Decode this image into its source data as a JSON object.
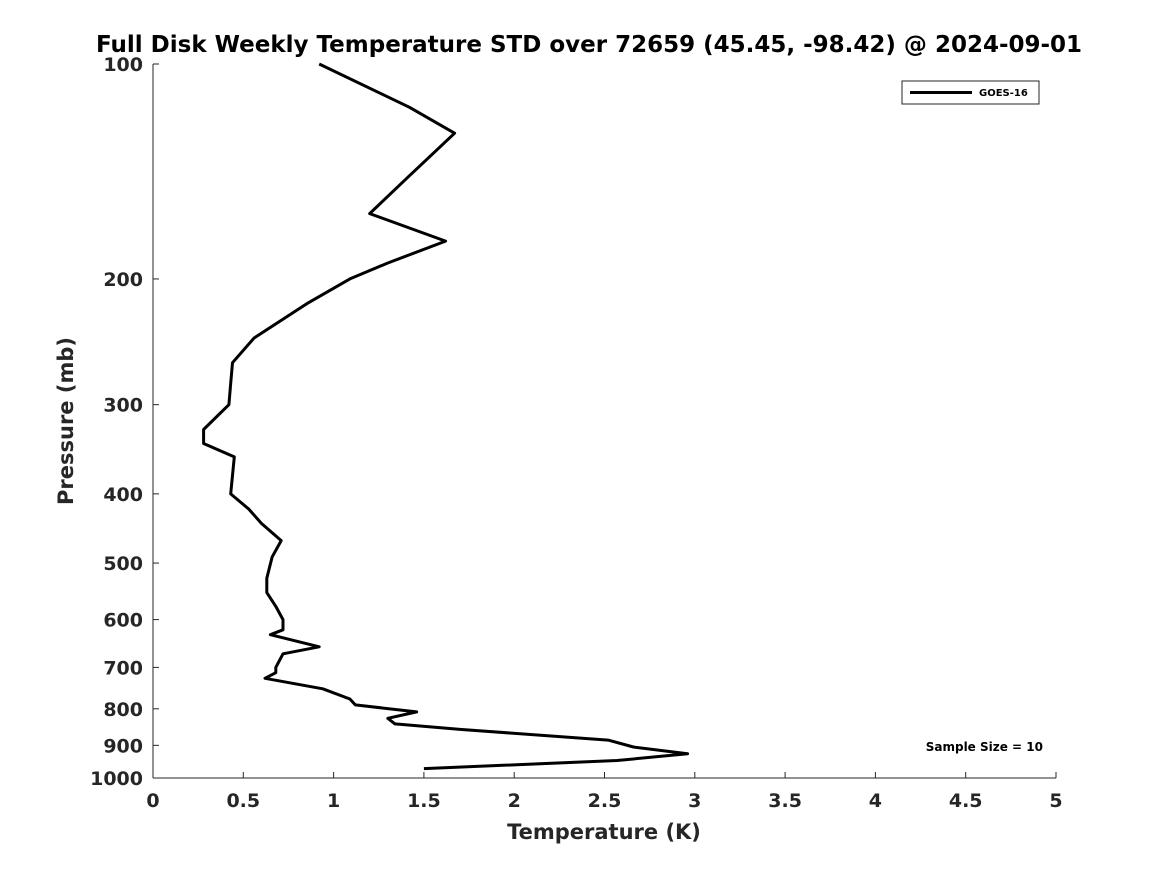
{
  "chart_data": {
    "type": "line",
    "title": "Full Disk Weekly Temperature STD over 72659 (45.45, -98.42) @ 2024-09-01",
    "xlabel": "Temperature (K)",
    "ylabel": "Pressure (mb)",
    "xlim": [
      0,
      5
    ],
    "ylim": [
      100,
      1000
    ],
    "y_scale": "log",
    "y_reversed": true,
    "x_ticks": [
      0,
      0.5,
      1,
      1.5,
      2,
      2.5,
      3,
      3.5,
      4,
      4.5,
      5
    ],
    "x_tick_labels": [
      "0",
      "0.5",
      "1",
      "1.5",
      "2",
      "2.5",
      "3",
      "3.5",
      "4",
      "4.5",
      "5"
    ],
    "y_ticks": [
      100,
      200,
      300,
      400,
      500,
      600,
      700,
      800,
      900,
      1000
    ],
    "y_tick_labels": [
      "100",
      "200",
      "300",
      "400",
      "500",
      "600",
      "700",
      "800",
      "900",
      "1000"
    ],
    "grid": false,
    "legend_position": "top-right",
    "series": [
      {
        "name": "GOES-16",
        "color": "#000000",
        "points": [
          [
            0.92,
            100
          ],
          [
            1.42,
            115
          ],
          [
            1.67,
            125
          ],
          [
            1.4,
            145
          ],
          [
            1.2,
            162
          ],
          [
            1.62,
            177
          ],
          [
            1.3,
            190
          ],
          [
            1.09,
            200
          ],
          [
            0.86,
            216
          ],
          [
            0.56,
            242
          ],
          [
            0.44,
            262
          ],
          [
            0.43,
            280
          ],
          [
            0.42,
            300
          ],
          [
            0.28,
            325
          ],
          [
            0.28,
            340
          ],
          [
            0.45,
            355
          ],
          [
            0.43,
            400
          ],
          [
            0.53,
            420
          ],
          [
            0.6,
            440
          ],
          [
            0.71,
            465
          ],
          [
            0.66,
            490
          ],
          [
            0.63,
            525
          ],
          [
            0.63,
            550
          ],
          [
            0.68,
            575
          ],
          [
            0.72,
            600
          ],
          [
            0.72,
            620
          ],
          [
            0.65,
            630
          ],
          [
            0.92,
            655
          ],
          [
            0.72,
            670
          ],
          [
            0.68,
            700
          ],
          [
            0.68,
            712
          ],
          [
            0.62,
            725
          ],
          [
            0.94,
            750
          ],
          [
            1.09,
            775
          ],
          [
            1.12,
            790
          ],
          [
            1.46,
            808
          ],
          [
            1.3,
            825
          ],
          [
            1.34,
            840
          ],
          [
            1.7,
            855
          ],
          [
            2.52,
            885
          ],
          [
            2.66,
            905
          ],
          [
            2.96,
            925
          ],
          [
            2.57,
            945
          ],
          [
            1.5,
            970
          ]
        ]
      }
    ],
    "annotations": [
      {
        "text": "Sample Size = 10",
        "position": "bottom-right"
      }
    ]
  }
}
